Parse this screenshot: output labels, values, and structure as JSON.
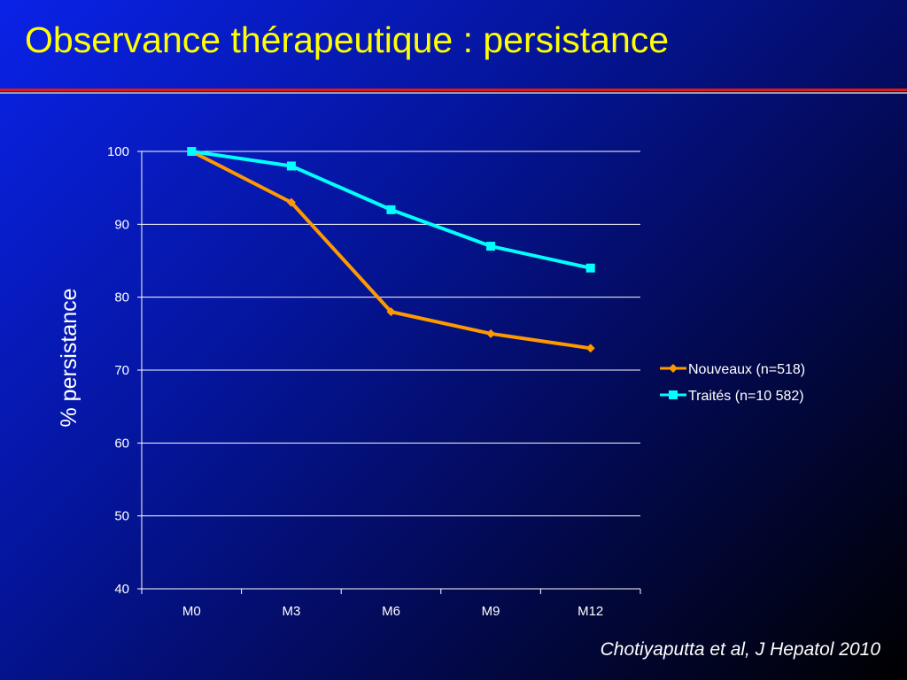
{
  "slide": {
    "title": "Observance thérapeutique : persistance",
    "citation": "Chotiyaputta et al, J Hepatol 2010",
    "colors": {
      "title": "#ffff00",
      "rule": "#e21818"
    }
  },
  "chart_data": {
    "type": "line",
    "categories": [
      "M0",
      "M3",
      "M6",
      "M9",
      "M12"
    ],
    "series": [
      {
        "name": "Nouveaux (n=518)",
        "values": [
          100,
          93,
          78,
          75,
          73
        ],
        "color": "#ff9900",
        "marker": "diamond"
      },
      {
        "name": "Traités (n=10 582)",
        "values": [
          100,
          98,
          92,
          87,
          84
        ],
        "color": "#00ffff",
        "marker": "square"
      }
    ],
    "title": "",
    "xlabel": "",
    "ylabel": "% persistance",
    "ylim": [
      40,
      100
    ],
    "yticks": [
      40,
      50,
      60,
      70,
      80,
      90,
      100
    ],
    "grid": true,
    "legend": "right"
  }
}
